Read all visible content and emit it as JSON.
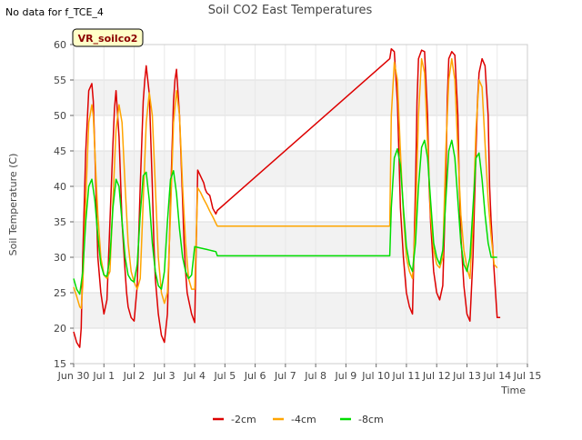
{
  "corner_note": "No data for f_TCE_4",
  "chart_data": {
    "type": "line",
    "title": "Soil CO2 East Temperatures",
    "xlabel": "Time",
    "ylabel": "Soil Temperature (C)",
    "site_label": "VR_soilco2",
    "ylim": [
      15,
      60
    ],
    "yticks": [
      15,
      20,
      25,
      30,
      35,
      40,
      45,
      50,
      55,
      60
    ],
    "xlim": [
      0,
      15
    ],
    "xticks": [
      0,
      1,
      2,
      3,
      4,
      5,
      6,
      7,
      8,
      9,
      10,
      11,
      12,
      13,
      14,
      15
    ],
    "xtick_labels": [
      "Jun 30",
      "Jul 1",
      "Jul 2",
      "Jul 3",
      "Jul 4",
      "Jul 5",
      "Jul 6",
      "Jul 7",
      "Jul 8",
      "Jul 9",
      "Jul 10",
      "Jul 11",
      "Jul 12",
      "Jul 13",
      "Jul 14",
      "Jul 15"
    ],
    "grid": true,
    "legend_position": "bottom",
    "series": [
      {
        "name": "-2cm",
        "color": "#dd0000",
        "x": [
          0.0,
          0.1,
          0.2,
          0.25,
          0.3,
          0.4,
          0.5,
          0.6,
          0.65,
          0.7,
          0.75,
          0.8,
          0.9,
          1.0,
          1.1,
          1.2,
          1.3,
          1.35,
          1.4,
          1.5,
          1.6,
          1.7,
          1.75,
          1.8,
          1.9,
          2.0,
          2.1,
          2.2,
          2.3,
          2.35,
          2.4,
          2.5,
          2.6,
          2.65,
          2.7,
          2.8,
          2.9,
          3.0,
          3.1,
          3.2,
          3.3,
          3.35,
          3.4,
          3.5,
          3.6,
          3.65,
          3.7,
          3.75,
          3.8,
          3.9,
          4.0,
          4.1,
          4.2,
          4.3,
          4.35,
          4.4,
          4.5,
          4.55,
          4.6,
          4.7,
          4.75,
          10.45,
          10.5,
          10.6,
          10.7,
          10.75,
          10.8,
          10.9,
          11.0,
          11.1,
          11.2,
          11.3,
          11.35,
          11.4,
          11.5,
          11.6,
          11.7,
          11.75,
          11.8,
          11.9,
          12.0,
          12.1,
          12.2,
          12.3,
          12.35,
          12.4,
          12.5,
          12.6,
          12.7,
          12.75,
          12.8,
          12.9,
          13.0,
          13.1,
          13.2,
          13.3,
          13.35,
          13.4,
          13.5,
          13.6,
          13.7,
          13.75,
          13.8,
          13.9,
          14.0,
          14.1
        ],
        "y": [
          19.5,
          18.0,
          17.3,
          20.0,
          30.0,
          45.0,
          53.5,
          54.5,
          52.0,
          45.0,
          37.0,
          30.0,
          25.0,
          22.0,
          24.0,
          35.0,
          46.0,
          51.0,
          53.5,
          47.0,
          35.0,
          28.0,
          25.0,
          23.0,
          21.5,
          21.0,
          26.0,
          40.0,
          52.0,
          55.0,
          57.0,
          53.0,
          40.0,
          32.0,
          27.0,
          22.0,
          19.0,
          18.0,
          22.0,
          38.0,
          52.0,
          55.0,
          56.5,
          50.0,
          38.0,
          32.0,
          28.0,
          25.0,
          24.0,
          22.0,
          20.8,
          42.3,
          41.4,
          40.5,
          39.6,
          39.1,
          38.7,
          37.8,
          36.9,
          36.1,
          36.6,
          58.0,
          59.4,
          59.0,
          52.0,
          45.0,
          37.0,
          30.0,
          25.0,
          23.0,
          22.0,
          40.0,
          52.0,
          58.0,
          59.2,
          59.0,
          50.0,
          40.0,
          35.0,
          28.0,
          25.0,
          24.0,
          26.0,
          40.0,
          52.0,
          58.0,
          59.0,
          58.5,
          50.0,
          40.0,
          33.0,
          26.0,
          22.0,
          21.0,
          30.0,
          45.0,
          52.0,
          56.0,
          58.0,
          57.0,
          50.0,
          40.0,
          35.0,
          28.0,
          21.5,
          21.5
        ]
      },
      {
        "name": "-4cm",
        "color": "#ffa500",
        "x": [
          0.0,
          0.1,
          0.2,
          0.25,
          0.3,
          0.4,
          0.5,
          0.6,
          0.65,
          0.7,
          0.8,
          0.9,
          1.0,
          1.1,
          1.2,
          1.3,
          1.4,
          1.5,
          1.6,
          1.7,
          1.8,
          1.9,
          2.0,
          2.1,
          2.2,
          2.3,
          2.4,
          2.5,
          2.6,
          2.7,
          2.8,
          2.9,
          3.0,
          3.1,
          3.2,
          3.3,
          3.4,
          3.5,
          3.6,
          3.7,
          3.8,
          3.9,
          4.0,
          4.1,
          4.2,
          4.3,
          4.4,
          4.5,
          4.6,
          4.7,
          4.75,
          10.45,
          10.5,
          10.6,
          10.7,
          10.8,
          10.9,
          11.0,
          11.1,
          11.2,
          11.3,
          11.4,
          11.5,
          11.6,
          11.7,
          11.8,
          11.9,
          12.0,
          12.1,
          12.2,
          12.3,
          12.4,
          12.5,
          12.6,
          12.7,
          12.8,
          12.9,
          13.0,
          13.1,
          13.2,
          13.3,
          13.4,
          13.5,
          13.6,
          13.7,
          13.8,
          13.9,
          14.0
        ],
        "y": [
          25.8,
          24.5,
          23.0,
          22.8,
          26.0,
          38.0,
          49.0,
          51.5,
          50.0,
          45.0,
          36.0,
          30.0,
          27.5,
          27.0,
          28.0,
          38.0,
          48.0,
          51.5,
          49.0,
          40.0,
          32.0,
          28.0,
          26.5,
          25.5,
          27.0,
          38.0,
          49.0,
          53.2,
          50.0,
          40.0,
          30.0,
          25.0,
          23.5,
          25.0,
          36.0,
          49.0,
          53.5,
          50.0,
          40.0,
          32.0,
          27.0,
          25.5,
          25.5,
          39.8,
          39.1,
          38.2,
          37.4,
          36.5,
          35.7,
          34.8,
          34.4,
          34.4,
          50.0,
          57.5,
          55.0,
          45.0,
          36.0,
          30.0,
          28.0,
          27.0,
          35.0,
          50.0,
          58.0,
          56.0,
          46.0,
          36.0,
          31.0,
          29.0,
          28.5,
          30.0,
          45.0,
          55.0,
          58.0,
          55.0,
          45.0,
          36.0,
          31.0,
          28.5,
          27.0,
          35.0,
          48.0,
          55.0,
          54.0,
          46.0,
          38.0,
          33.0,
          29.0,
          28.5
        ]
      },
      {
        "name": "-8cm",
        "color": "#00dd00",
        "x": [
          0.0,
          0.1,
          0.2,
          0.3,
          0.4,
          0.5,
          0.6,
          0.7,
          0.8,
          0.9,
          1.0,
          1.1,
          1.2,
          1.3,
          1.4,
          1.5,
          1.6,
          1.7,
          1.8,
          1.9,
          2.0,
          2.1,
          2.2,
          2.3,
          2.4,
          2.5,
          2.6,
          2.7,
          2.8,
          2.9,
          3.0,
          3.1,
          3.2,
          3.3,
          3.4,
          3.5,
          3.6,
          3.7,
          3.8,
          3.9,
          4.0,
          4.1,
          4.2,
          4.3,
          4.4,
          4.5,
          4.6,
          4.7,
          4.75,
          10.45,
          10.5,
          10.6,
          10.7,
          10.8,
          10.9,
          11.0,
          11.1,
          11.2,
          11.3,
          11.4,
          11.5,
          11.6,
          11.7,
          11.8,
          11.9,
          12.0,
          12.1,
          12.2,
          12.3,
          12.4,
          12.5,
          12.6,
          12.7,
          12.8,
          12.9,
          13.0,
          13.1,
          13.2,
          13.3,
          13.4,
          13.5,
          13.6,
          13.7,
          13.8,
          13.9,
          14.0
        ],
        "y": [
          27.0,
          25.5,
          24.8,
          28.0,
          35.0,
          40.0,
          41.0,
          38.0,
          33.0,
          29.0,
          27.5,
          27.3,
          30.0,
          37.0,
          41.0,
          40.0,
          35.0,
          30.0,
          27.5,
          26.8,
          26.5,
          29.0,
          36.0,
          41.5,
          42.0,
          38.0,
          32.0,
          28.0,
          26.0,
          25.5,
          28.0,
          35.0,
          41.0,
          42.2,
          39.0,
          34.0,
          30.0,
          28.0,
          27.0,
          27.5,
          31.5,
          31.4,
          31.3,
          31.2,
          31.1,
          31.0,
          30.9,
          30.8,
          30.2,
          30.2,
          37.0,
          44.0,
          45.3,
          43.0,
          37.0,
          31.5,
          29.0,
          28.0,
          32.0,
          40.0,
          45.5,
          46.5,
          44.0,
          38.0,
          32.0,
          30.0,
          29.0,
          31.0,
          38.0,
          45.0,
          46.5,
          44.0,
          38.0,
          32.0,
          29.0,
          28.0,
          30.0,
          37.0,
          44.0,
          44.7,
          41.0,
          36.0,
          32.0,
          30.0,
          30.0,
          30.0
        ]
      }
    ]
  }
}
